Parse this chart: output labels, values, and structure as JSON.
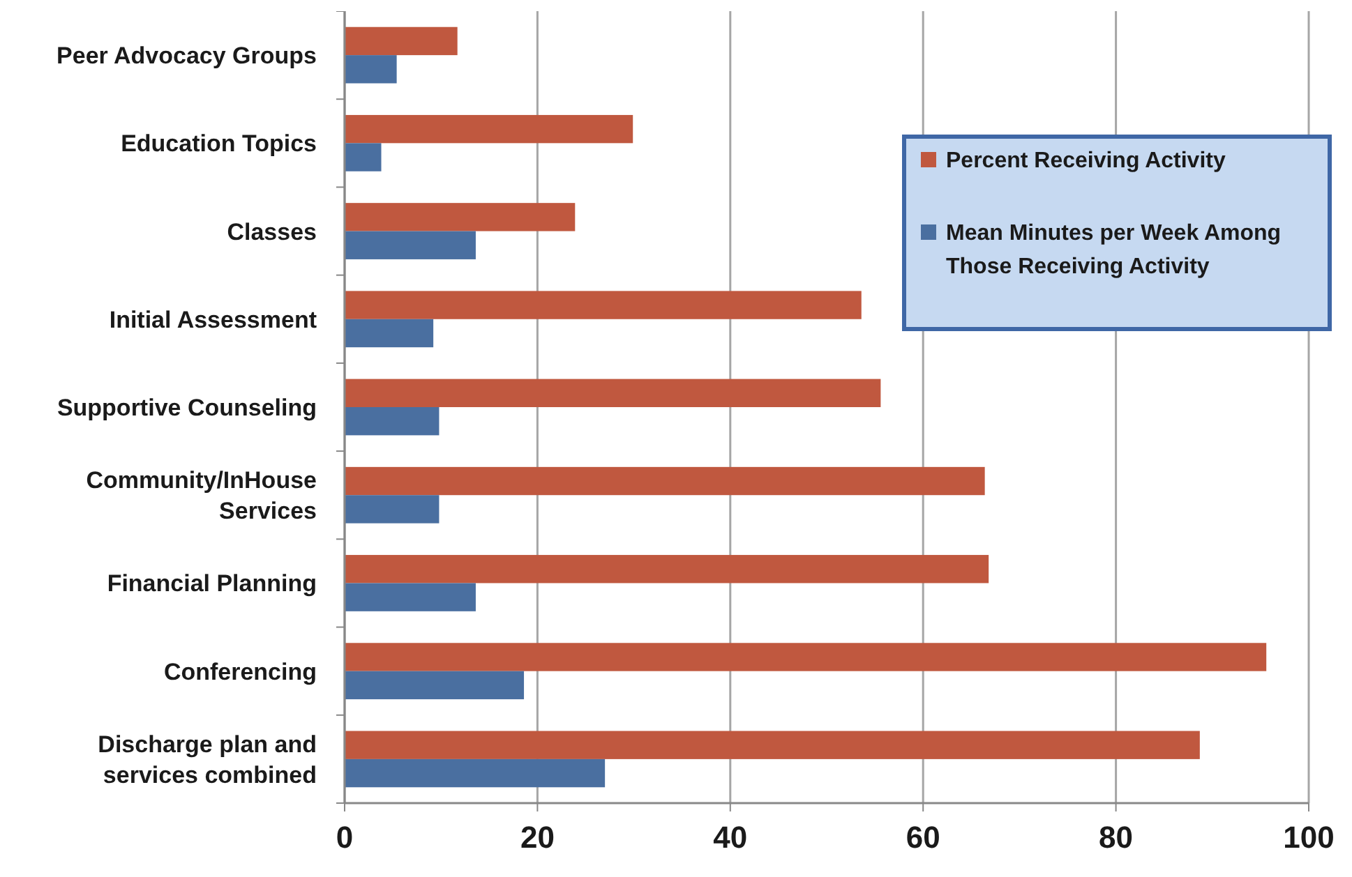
{
  "chart_data": {
    "type": "bar",
    "orientation": "horizontal",
    "categories": [
      "Peer Advocacy Groups",
      "Education Topics",
      "Classes",
      "Initial Assessment",
      "Supportive Counseling",
      "Community/InHouse Services",
      "Financial Planning",
      "Conferencing",
      "Discharge plan and services combined"
    ],
    "series": [
      {
        "name": "Percent Receiving Activity",
        "color": "#c0583f",
        "values": [
          11.7,
          29.9,
          23.9,
          53.6,
          55.6,
          66.4,
          66.8,
          95.6,
          88.7
        ]
      },
      {
        "name": "Mean Minutes per Week Among Those Receiving Activity",
        "color": "#4a6fa0",
        "values": [
          5.4,
          3.8,
          13.6,
          9.2,
          9.8,
          9.8,
          13.6,
          18.6,
          27
        ]
      }
    ],
    "xlim": [
      0,
      100
    ],
    "xticks": [
      0,
      20,
      40,
      60,
      80,
      100
    ],
    "grid": "x",
    "legend": "top right"
  }
}
